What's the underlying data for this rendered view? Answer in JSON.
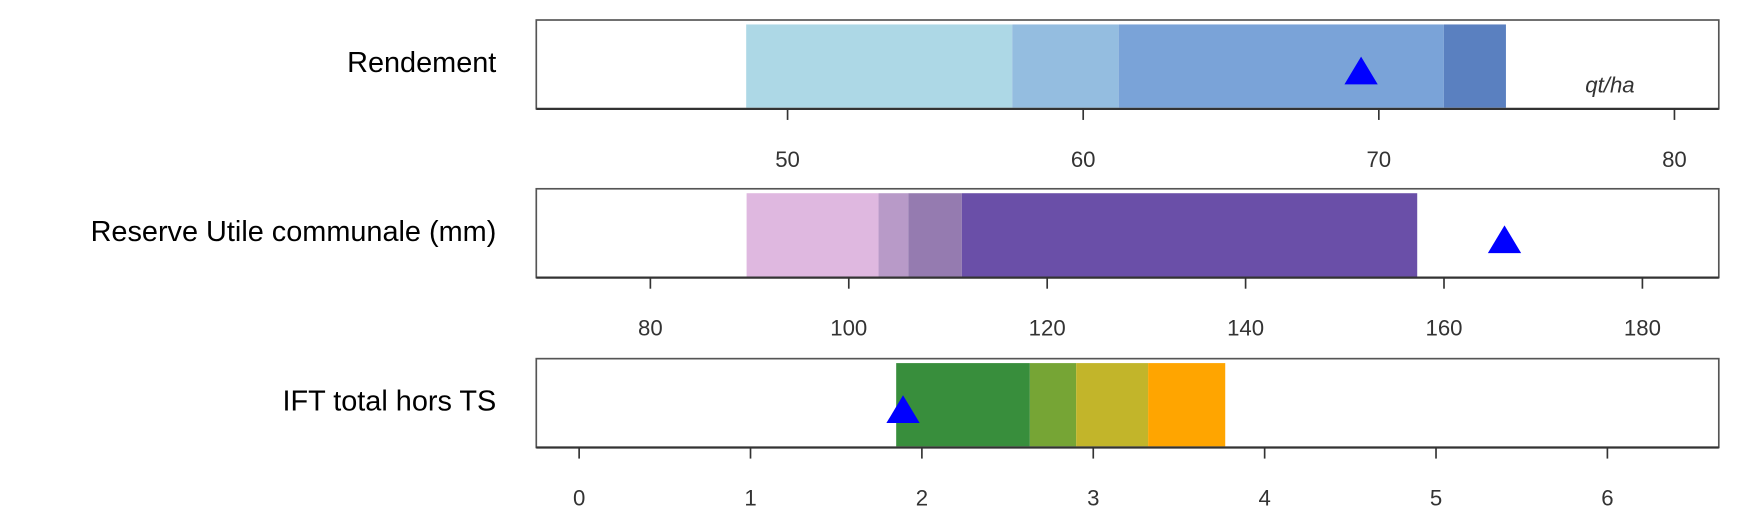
{
  "chart_data": [
    {
      "type": "bullet",
      "title": "Rendement",
      "unit": "qt/ha",
      "breaks": [
        48.6,
        57.6,
        61.2,
        72.2,
        74.3
      ],
      "colors": [
        "#add8e6",
        "#94bde0",
        "#7aa3d8",
        "#5a80c0"
      ],
      "marker": 69.4,
      "marker_color": "#0000ff",
      "xlim": [
        41.5,
        81.5
      ],
      "xticks": [
        50,
        60,
        70,
        80
      ]
    },
    {
      "type": "bullet",
      "title": "Reserve Utile communale (mm)",
      "breaks": [
        89.7,
        103.0,
        106.0,
        111.4,
        157.3
      ],
      "colors": [
        "#dfb8e0",
        "#b89ac8",
        "#957bb0",
        "#6a4fa8"
      ],
      "marker": 166.1,
      "marker_color": "#0000ff",
      "xlim": [
        68.5,
        187.7
      ],
      "xticks": [
        80,
        100,
        120,
        140,
        160,
        180
      ]
    },
    {
      "type": "bullet",
      "title": "IFT total hors TS",
      "breaks": [
        1.85,
        2.63,
        2.9,
        3.32,
        3.77
      ],
      "colors": [
        "#388e3c",
        "#76a535",
        "#c2b52a",
        "#ffa500"
      ],
      "marker": 1.89,
      "marker_color": "#0000ff",
      "xlim": [
        -0.25,
        6.65
      ],
      "xticks": [
        0,
        1,
        2,
        3,
        4,
        5,
        6
      ]
    }
  ]
}
